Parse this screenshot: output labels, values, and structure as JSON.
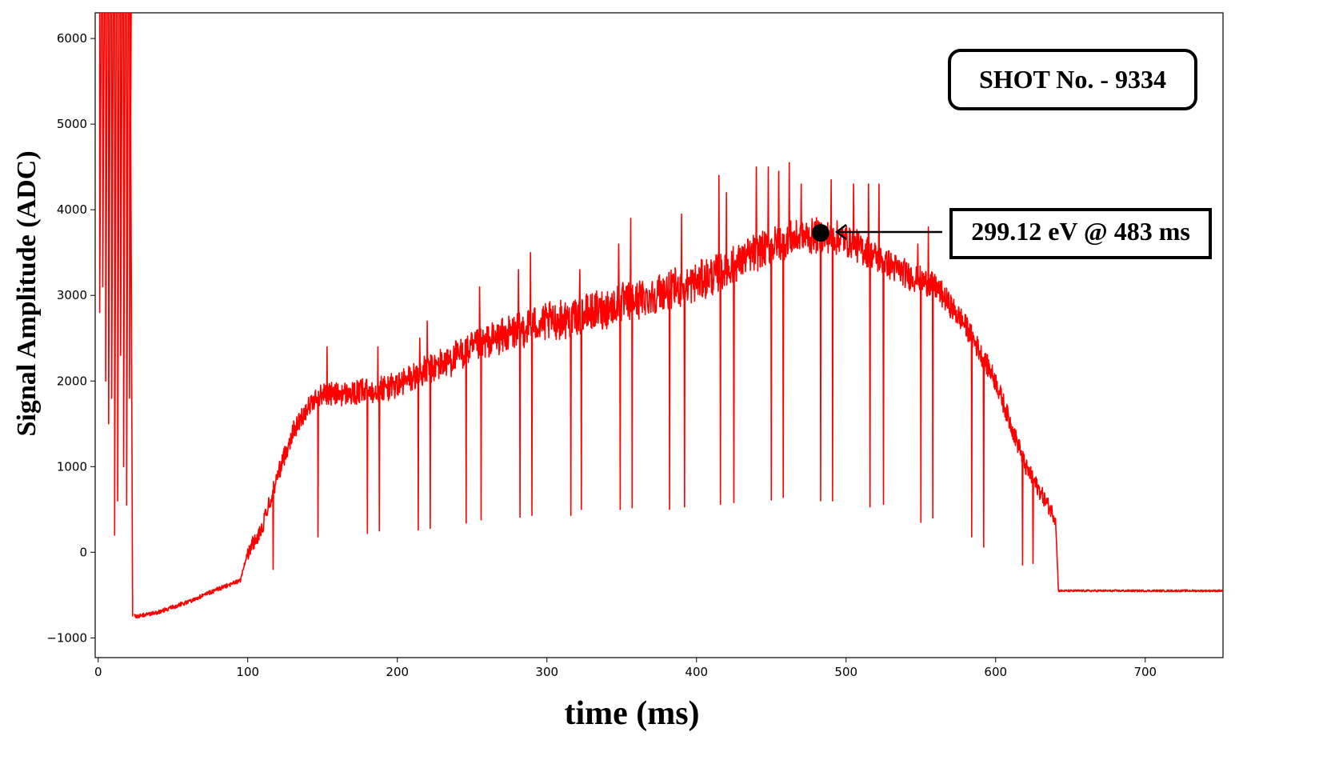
{
  "chart_data": {
    "type": "line",
    "title": "",
    "xlabel": "time (ms)",
    "ylabel": "Signal Amplitude (ADC)",
    "xlim": [
      -2,
      752
    ],
    "ylim": [
      -1230,
      6300
    ],
    "xticks": [
      0,
      100,
      200,
      300,
      400,
      500,
      600,
      700
    ],
    "yticks": [
      -1000,
      0,
      1000,
      2000,
      3000,
      4000,
      5000,
      6000
    ],
    "xtick_labels": [
      "0",
      "100",
      "200",
      "300",
      "400",
      "500",
      "600",
      "700"
    ],
    "ytick_labels": [
      "−1000",
      "0",
      "1000",
      "2000",
      "3000",
      "4000",
      "5000",
      "6000"
    ],
    "grid": false,
    "legend": "none",
    "series": [
      {
        "color": "#ff0000",
        "envelope": {
          "t": [
            0,
            25,
            40,
            60,
            80,
            95,
            100,
            110,
            120,
            130,
            140,
            150,
            170,
            200,
            230,
            260,
            290,
            320,
            350,
            380,
            400,
            420,
            440,
            460,
            480,
            500,
            520,
            540,
            560,
            580,
            600,
            620,
            630,
            640,
            642,
            680,
            720,
            752
          ],
          "v": [
            0,
            -750,
            -700,
            -580,
            -430,
            -330,
            0,
            300,
            900,
            1400,
            1700,
            1850,
            1850,
            1950,
            2200,
            2450,
            2650,
            2750,
            2900,
            3050,
            3150,
            3300,
            3500,
            3650,
            3700,
            3650,
            3450,
            3250,
            3100,
            2650,
            2000,
            1000,
            700,
            400,
            -450,
            -450,
            -450,
            -450
          ]
        },
        "startup_spikes": {
          "t": [
            1,
            3,
            5,
            7,
            9,
            11,
            13,
            15,
            17,
            19,
            21
          ],
          "low": [
            2800,
            3100,
            2000,
            1500,
            1800,
            200,
            600,
            2300,
            1000,
            550,
            1800
          ]
        },
        "downward_spikes": {
          "t": [
            117,
            147,
            180,
            188,
            214,
            222,
            246,
            256,
            282,
            290,
            316,
            323,
            349,
            357,
            382,
            392,
            416,
            425,
            450,
            458,
            483,
            491,
            516,
            525,
            550,
            558,
            584,
            592,
            618,
            625
          ],
          "low": [
            -200,
            180,
            220,
            250,
            260,
            280,
            340,
            380,
            410,
            430,
            430,
            500,
            500,
            520,
            500,
            530,
            560,
            580,
            610,
            640,
            600,
            600,
            530,
            560,
            350,
            400,
            180,
            60,
            -150,
            -130
          ]
        },
        "upward_spikes": {
          "t": [
            153,
            187,
            215,
            220,
            255,
            281,
            289,
            316,
            322,
            348,
            356,
            390,
            415,
            420,
            440,
            448,
            455,
            462,
            470,
            483,
            490,
            505,
            515,
            522,
            548,
            555,
            584,
            616
          ],
          "high": [
            2400,
            2400,
            2500,
            2700,
            3100,
            3300,
            3500,
            3500,
            3300,
            3600,
            3900,
            3950,
            4400,
            4200,
            4500,
            4500,
            4450,
            4550,
            4300,
            4550,
            4350,
            4300,
            4300,
            4300,
            3600,
            3800,
            2600,
            1300
          ]
        }
      }
    ]
  },
  "annotations": {
    "shot_label": "SHOT No. - 9334",
    "point_label": "299.12 eV @ 483 ms",
    "marker": {
      "t": 483,
      "v": 3730
    }
  }
}
